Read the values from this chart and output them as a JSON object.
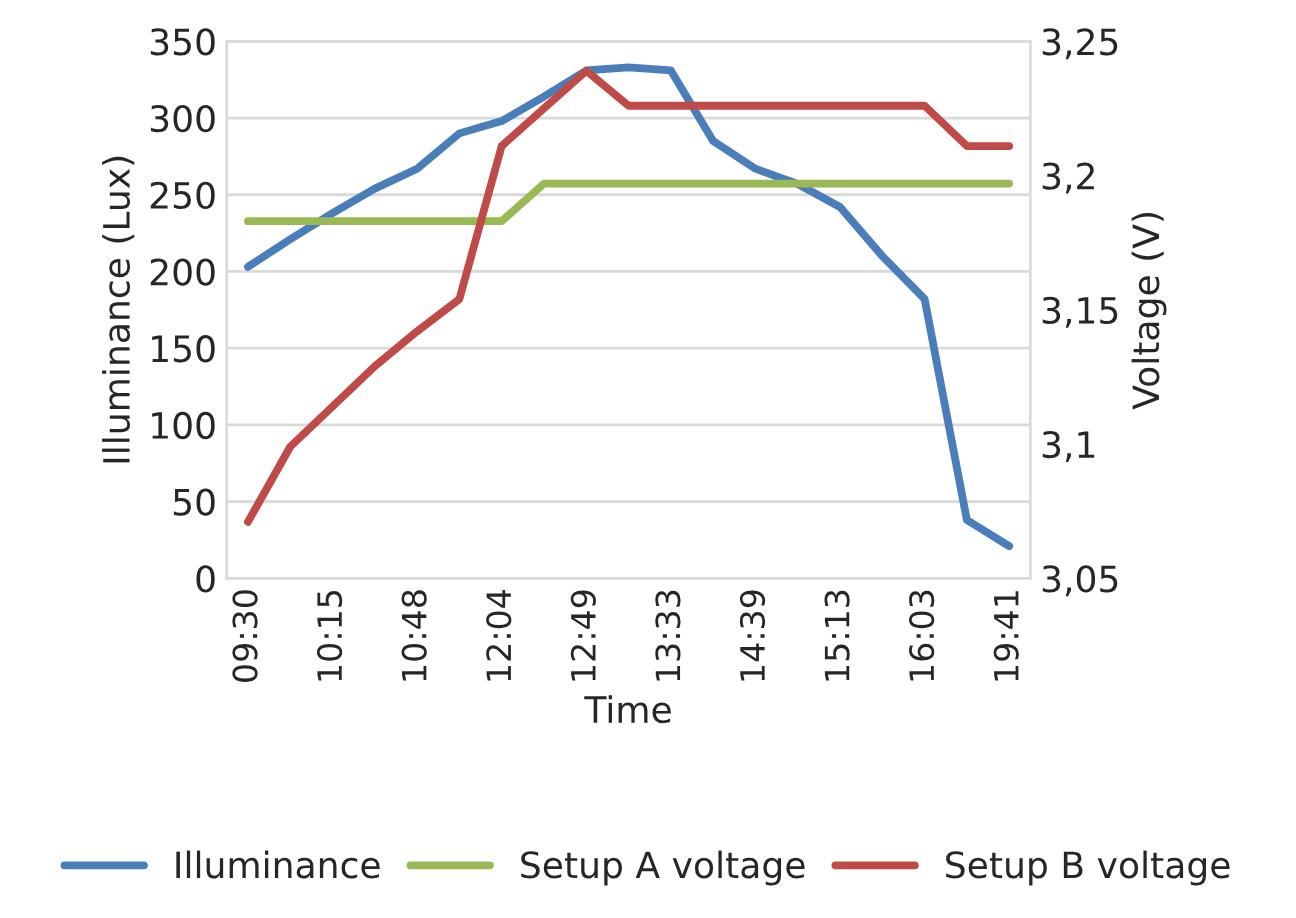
{
  "chart_data": {
    "type": "line",
    "xlabel": "Time",
    "ylabel": "Illuminance (Lux)",
    "y2label": "Voltage (V)",
    "categories": [
      "09:30",
      null,
      "10:15",
      null,
      "10:48",
      null,
      "12:04",
      null,
      "12:49",
      null,
      "13:33",
      null,
      "14:39",
      null,
      "15:13",
      null,
      "16:03",
      null,
      "19:41"
    ],
    "series": [
      {
        "name": "Illuminance",
        "color": "#4a7ebb",
        "values": [
          203,
          221,
          238,
          254,
          267,
          290,
          298,
          314,
          331,
          333,
          331,
          285,
          267,
          257,
          242,
          210,
          182,
          38,
          21
        ]
      },
      {
        "name": "Setup A voltage",
        "color": "#98b954",
        "axis": "y2",
        "values": [
          3.183,
          3.183,
          3.183,
          3.183,
          3.183,
          3.183,
          3.183,
          3.197,
          3.197,
          3.197,
          3.197,
          3.197,
          3.197,
          3.197,
          3.197,
          3.197,
          3.197,
          3.197,
          3.197
        ]
      },
      {
        "name": "Setup B voltage",
        "color": "#be4b48",
        "axis": "y2",
        "values": [
          3.071,
          3.099,
          3.114,
          3.129,
          3.142,
          3.154,
          3.211,
          3.225,
          3.239,
          3.226,
          3.226,
          3.226,
          3.226,
          3.226,
          3.226,
          3.226,
          3.226,
          3.211,
          3.211
        ]
      }
    ],
    "ylim": [
      0,
      350
    ],
    "yticks": [
      0,
      50,
      100,
      150,
      200,
      250,
      300,
      350
    ],
    "y2lim": [
      3.05,
      3.25
    ],
    "y2ticks": [
      {
        "value": 3.05,
        "label": "3,05"
      },
      {
        "value": 3.1,
        "label": "3,1"
      },
      {
        "value": 3.15,
        "label": "3,15"
      },
      {
        "value": 3.2,
        "label": "3,2"
      },
      {
        "value": 3.25,
        "label": "3,25"
      }
    ],
    "grid": "y",
    "legend": "bottom",
    "marker": "none",
    "line_style": "solid"
  }
}
